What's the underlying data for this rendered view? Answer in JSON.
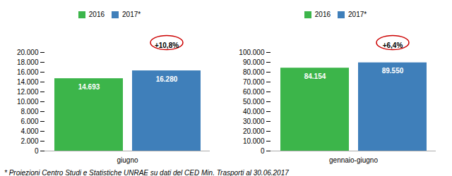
{
  "chart_data": [
    {
      "type": "bar",
      "categories": [
        "giugno"
      ],
      "series": [
        {
          "name": "2016",
          "color": "#3cb54a",
          "values": [
            14693
          ],
          "value_labels": [
            "14.693"
          ]
        },
        {
          "name": "2017*",
          "color": "#3f7fba",
          "values": [
            16280
          ],
          "value_labels": [
            "16.280"
          ]
        }
      ],
      "ylim": [
        0,
        20000
      ],
      "yticks": [
        0,
        {
          "value": 2000,
          "label": "2.000"
        },
        {
          "value": 4000,
          "label": "4.000"
        },
        {
          "value": 6000,
          "label": "6.000"
        },
        {
          "value": 8000,
          "label": "8.000"
        },
        {
          "value": 10000,
          "label": "10.000"
        },
        {
          "value": 12000,
          "label": "12.000"
        },
        {
          "value": 14000,
          "label": "14.000"
        },
        {
          "value": 16000,
          "label": "16.000"
        },
        {
          "value": 18000,
          "label": "18.000"
        },
        {
          "value": 20000,
          "label": "20.000"
        }
      ],
      "annotations": [
        {
          "text": "+10,8%",
          "color": "#cc0000"
        }
      ],
      "data_labels": true,
      "grid": false,
      "legend": "upper center"
    },
    {
      "type": "bar",
      "categories": [
        "gennaio-giugno"
      ],
      "series": [
        {
          "name": "2016",
          "color": "#3cb54a",
          "values": [
            84154
          ],
          "value_labels": [
            "84.154"
          ]
        },
        {
          "name": "2017*",
          "color": "#3f7fba",
          "values": [
            89550
          ],
          "value_labels": [
            "89.550"
          ]
        }
      ],
      "ylim": [
        0,
        100000
      ],
      "yticks": [
        0,
        {
          "value": 10000,
          "label": "10.000"
        },
        {
          "value": 20000,
          "label": "20.000"
        },
        {
          "value": 30000,
          "label": "30.000"
        },
        {
          "value": 40000,
          "label": "40.000"
        },
        {
          "value": 50000,
          "label": "50.000"
        },
        {
          "value": 60000,
          "label": "60.000"
        },
        {
          "value": 70000,
          "label": "70.000"
        },
        {
          "value": 80000,
          "label": "80.000"
        },
        {
          "value": 90000,
          "label": "90.000"
        },
        {
          "value": 100000,
          "label": "100.000"
        }
      ],
      "annotations": [
        {
          "text": "+6,4%",
          "color": "#cc0000"
        }
      ],
      "data_labels": true,
      "grid": false,
      "legend": "upper center"
    }
  ],
  "caption": "* Proiezioni Centro Studi e Statistiche UNRAE su dati del CED Min. Trasporti al 30.06.2017"
}
